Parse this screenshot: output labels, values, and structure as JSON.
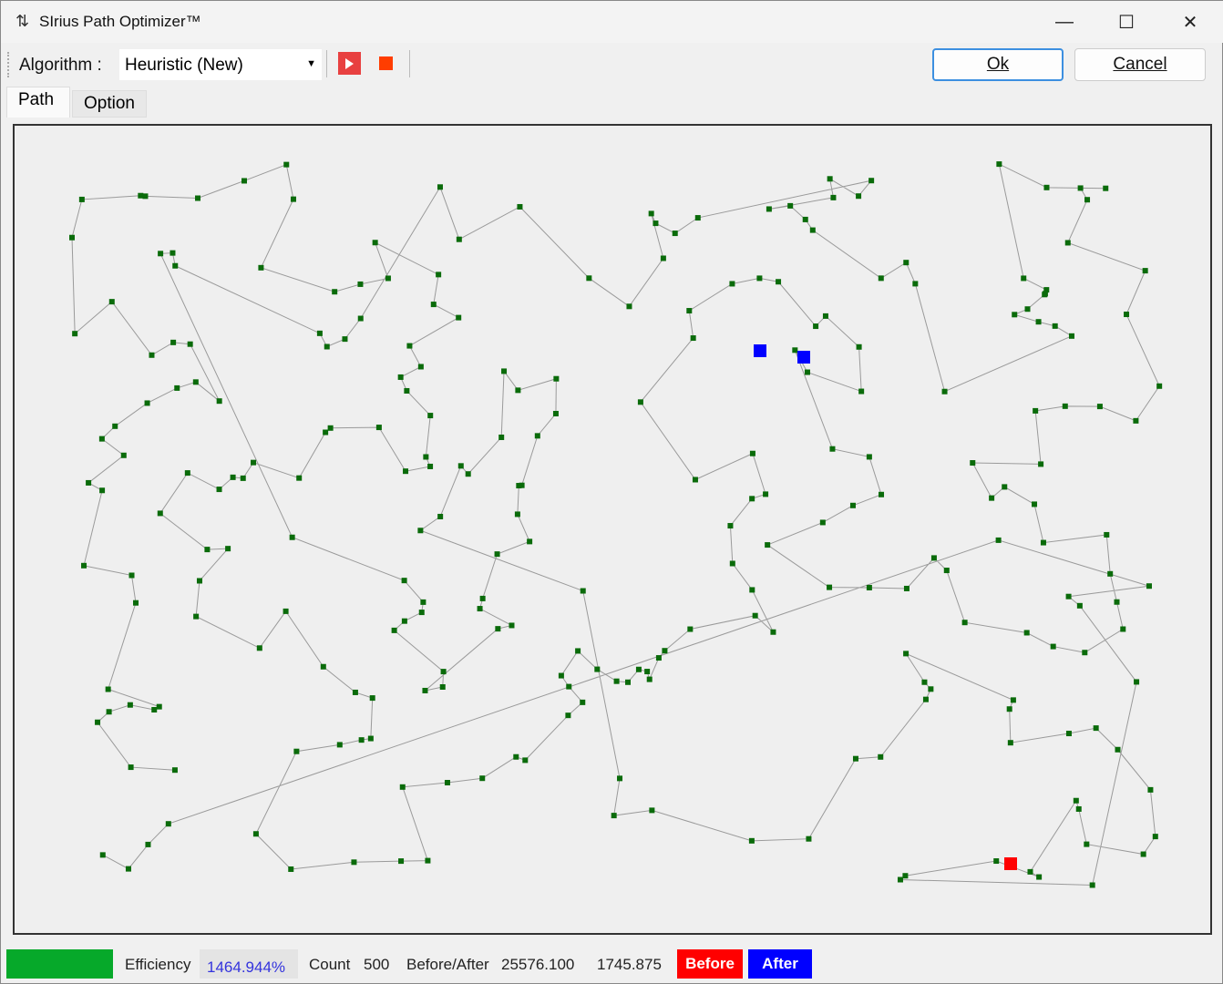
{
  "window": {
    "title": "SIrius Path Optimizer™",
    "app_icon": "path-icon",
    "minimize": "—",
    "maximize": "☐",
    "close": "✕"
  },
  "toolbar": {
    "algorithm_label": "Algorithm :",
    "algorithm_value": "Heuristic (New)",
    "run_icon": "play-icon",
    "stop_icon": "stop-icon",
    "ok_label": "Ok",
    "cancel_label": "Cancel"
  },
  "tabs": [
    {
      "label": "Path",
      "active": true
    },
    {
      "label": "Option",
      "active": false
    }
  ],
  "status": {
    "progress": 1.0,
    "progress_color": "#06a92a",
    "efficiency_label": "Efficiency",
    "efficiency_value": "1464.944%",
    "count_label": "Count",
    "count_value": "500",
    "before_after_label": "Before/After",
    "before_value": "25576.100",
    "after_value": "1745.875",
    "before_label": "Before",
    "after_label": "After",
    "before_color": "#ff0000",
    "after_color": "#0000ff"
  },
  "path": {
    "point_color": "#0a6b0a",
    "line_color": "#9a9a9a",
    "point_count": 500
  }
}
